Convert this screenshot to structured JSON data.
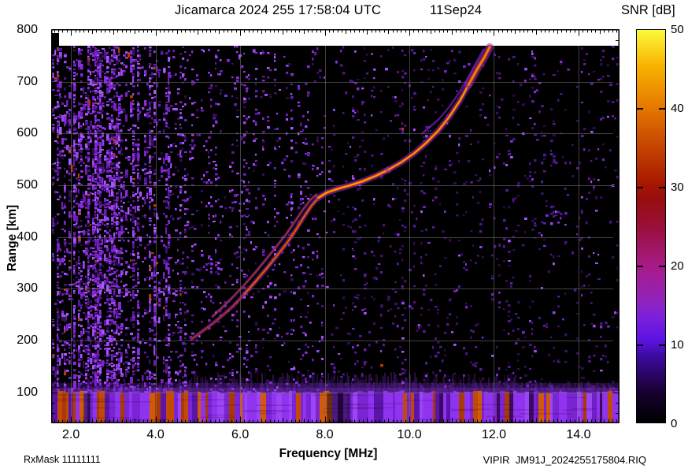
{
  "header": {
    "title": "Jicamarca 2024 255 17:58:04 UTC",
    "date": "11Sep24",
    "colorbar_title": "SNR [dB]"
  },
  "footer": {
    "left": "RxMask 11111111",
    "right": "VIPIR  JM91J_2024255175804.RIQ"
  },
  "chart_data": {
    "type": "heatmap",
    "title": "Jicamarca 2024 255 17:58:04 UTC",
    "date_label": "11Sep24",
    "xlabel": "Frequency [MHz]",
    "ylabel": "Range [km]",
    "colorbar_label": "SNR [dB]",
    "x_axis": {
      "min": 1.55,
      "max": 14.95,
      "major_ticks": [
        2.0,
        4.0,
        6.0,
        8.0,
        10.0,
        12.0,
        14.0
      ],
      "tick_labels": [
        "2.0",
        "4.0",
        "6.0",
        "8.0",
        "10.0",
        "12.0",
        "14.0"
      ],
      "minor_tick_step": 0.1,
      "grid_step": 2.0
    },
    "y_axis": {
      "min": 42,
      "max": 800,
      "major_ticks": [
        100,
        200,
        300,
        400,
        500,
        600,
        700,
        800
      ],
      "tick_labels": [
        "100",
        "200",
        "300",
        "400",
        "500",
        "600",
        "700",
        "800"
      ],
      "minor_tick_step": 20,
      "grid_step": 100
    },
    "colorbar": {
      "min": 0,
      "max": 50,
      "ticks": [
        0,
        10,
        20,
        30,
        40,
        50
      ],
      "tick_labels": [
        "0",
        "10",
        "20",
        "30",
        "40",
        "50"
      ],
      "inner_dash_values": [
        10,
        20,
        30,
        40
      ],
      "stops": [
        [
          "#000000",
          0
        ],
        [
          "#190133",
          8
        ],
        [
          "#3c0aa0",
          17
        ],
        [
          "#5c13e4",
          21
        ],
        [
          "#7c20da",
          27
        ],
        [
          "#9223bc",
          31
        ],
        [
          "#a81a86",
          40
        ],
        [
          "#9a1040",
          49
        ],
        [
          "#970d0d",
          57
        ],
        [
          "#a81800",
          61
        ],
        [
          "#cd5200",
          73
        ],
        [
          "#e87c00",
          81
        ],
        [
          "#f7b400",
          91
        ],
        [
          "#fdfa3c",
          100
        ]
      ]
    },
    "o_mode_trace_mhz_km": [
      [
        4.85,
        203
      ],
      [
        5.1,
        218
      ],
      [
        5.35,
        233
      ],
      [
        5.6,
        250
      ],
      [
        5.85,
        268
      ],
      [
        6.1,
        290
      ],
      [
        6.35,
        313
      ],
      [
        6.6,
        337
      ],
      [
        6.85,
        362
      ],
      [
        7.1,
        388
      ],
      [
        7.3,
        412
      ],
      [
        7.5,
        438
      ],
      [
        7.68,
        460
      ],
      [
        7.85,
        476
      ],
      [
        8.05,
        486
      ],
      [
        8.3,
        493
      ],
      [
        8.6,
        500
      ],
      [
        8.9,
        508
      ],
      [
        9.2,
        518
      ],
      [
        9.5,
        530
      ],
      [
        9.8,
        544
      ],
      [
        10.1,
        561
      ],
      [
        10.4,
        582
      ],
      [
        10.7,
        607
      ],
      [
        10.95,
        633
      ],
      [
        11.2,
        664
      ],
      [
        11.4,
        694
      ],
      [
        11.6,
        724
      ],
      [
        11.78,
        748
      ],
      [
        11.9,
        767
      ]
    ],
    "x_mode_trace_mhz_km": [
      [
        5.35,
        247
      ],
      [
        5.6,
        266
      ],
      [
        5.85,
        286
      ],
      [
        6.1,
        308
      ],
      [
        6.35,
        331
      ],
      [
        6.6,
        356
      ],
      [
        6.85,
        381
      ],
      [
        7.1,
        407
      ],
      [
        7.3,
        431
      ],
      [
        7.5,
        455
      ],
      [
        7.65,
        471
      ],
      [
        7.8,
        482
      ]
    ],
    "upper_fringe_trace_mhz_km": [
      [
        10.3,
        600
      ],
      [
        10.7,
        628
      ],
      [
        10.95,
        652
      ],
      [
        11.2,
        682
      ],
      [
        11.4,
        710
      ],
      [
        11.6,
        740
      ],
      [
        11.75,
        762
      ]
    ],
    "trace_colors": {
      "halo": "#8a2be2",
      "rim": "#b02408",
      "core": "#ef7b0d",
      "hot": "#ff9f1e"
    },
    "noise": {
      "seed": 42,
      "rfi_dense_max_mhz": 4.3,
      "bright_speck_colors": [
        "#8a2be2",
        "#9b45f0",
        "#7b22cc",
        "#a856ff",
        "#6a1cb0"
      ],
      "dim_speck_colors": [
        "#3a1062",
        "#4a1580",
        "#2e0b50",
        "#56189a"
      ],
      "orange_speck_color": "#b43a06",
      "vertical_stripe_mhz": [
        9.85,
        10.35,
        12.9
      ]
    },
    "ground_band": {
      "top_km": 100,
      "haze_top_km": 140,
      "base_color": "#6f1fc6",
      "purple_streaks": [
        "#8f33ee",
        "#7a24d4",
        "#9b45f5",
        "#5a14a8",
        "#3a0a60"
      ],
      "orange_streaks": [
        "#d15a0a",
        "#c24a07",
        "#a93a06"
      ],
      "dark_gap_mhz": [
        [
          8.05,
          8.6
        ],
        [
          2.3,
          2.45
        ]
      ]
    },
    "grid": true,
    "legend_position": "right-colorbar"
  }
}
